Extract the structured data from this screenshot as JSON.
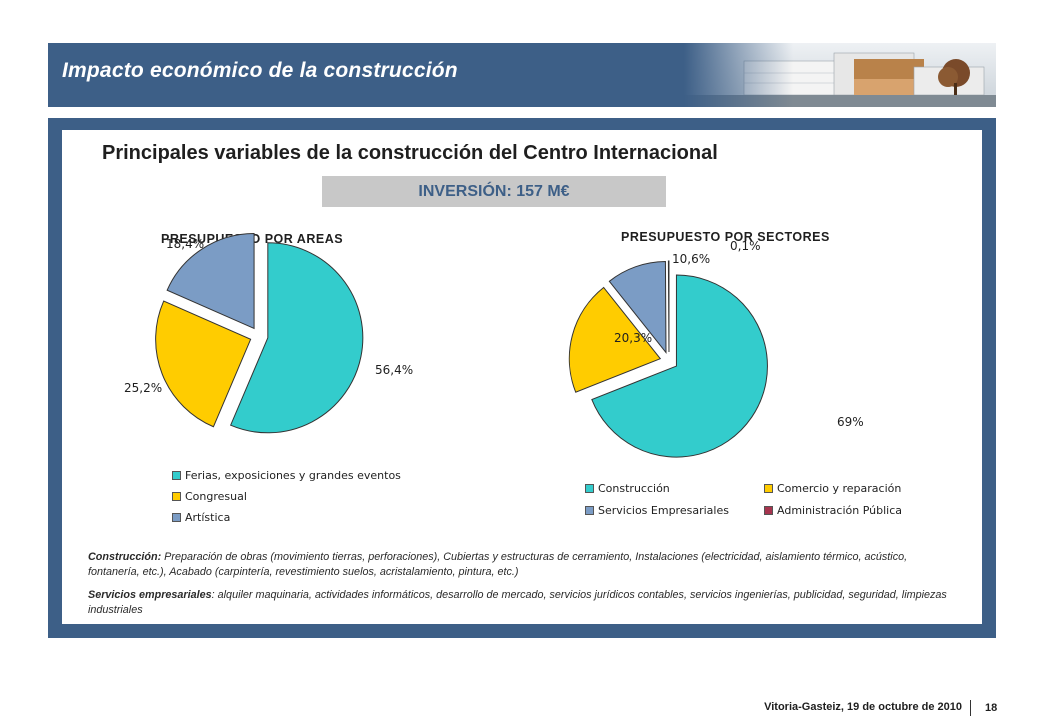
{
  "header": {
    "title": "Impacto económico de la construcción",
    "photo_icon": "building-photo-icon"
  },
  "main": {
    "title": "Principales variables de la construcción del Centro Internacional",
    "investment_label": "INVERSIÓN: 157 M€"
  },
  "colors": {
    "frame": "#3d5f87",
    "cyan": "#33cccc",
    "yellow": "#ffcc00",
    "blue": "#7b9cc5",
    "maroon": "#a6344e"
  },
  "chart_data": [
    {
      "type": "pie",
      "title": "PRESUPUESTO POR AREAS",
      "categories": [
        "Ferias, exposiciones y grandes eventos",
        "Congresual",
        "Artística"
      ],
      "values": [
        56.4,
        25.2,
        18.4
      ],
      "value_labels": [
        "56,4%",
        "25,2%",
        "18,4%"
      ],
      "colors": [
        "#33cccc",
        "#ffcc00",
        "#7b9cc5"
      ],
      "legend_position": "bottom"
    },
    {
      "type": "pie",
      "title": "PRESUPUESTO POR SECTORES",
      "categories": [
        "Construcción",
        "Comercio y reparación",
        "Servicios Empresariales",
        "Administración Pública"
      ],
      "values": [
        69,
        20.3,
        10.6,
        0.1
      ],
      "value_labels": [
        "69%",
        "20,3%",
        "10,6%",
        "0,1%"
      ],
      "colors": [
        "#33cccc",
        "#ffcc00",
        "#7b9cc5",
        "#a6344e"
      ],
      "legend_position": "bottom"
    }
  ],
  "notes": [
    {
      "term": "Construcción:",
      "text": " Preparación de obras (movimiento tierras, perforaciones), Cubiertas y estructuras de cerramiento, Instalaciones (electricidad, aislamiento térmico, acústico, fontanería, etc.), Acabado (carpintería, revestimiento suelos, acristalamiento, pintura, etc.)"
    },
    {
      "term": "Servicios empresariales",
      "text": ": alquiler maquinaria, actividades informáticos, desarrollo de mercado, servicios jurídicos contables, servicios ingenierías, publicidad, seguridad, limpiezas industriales"
    }
  ],
  "footer": {
    "location_date": "Vitoria-Gasteiz, 19 de octubre de 2010",
    "page": "18"
  }
}
